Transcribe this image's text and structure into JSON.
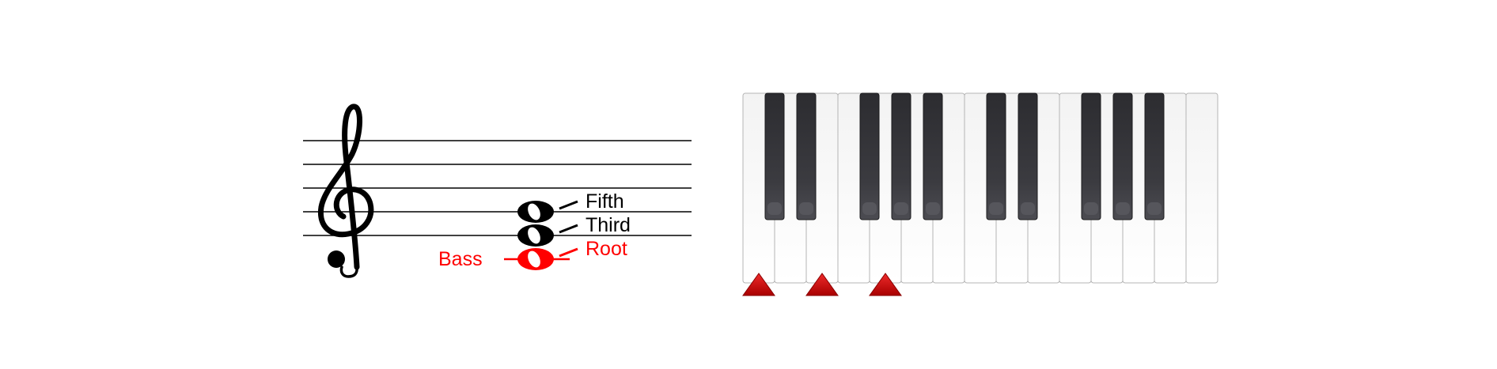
{
  "labels": {
    "bass": "Bass",
    "root": "Root",
    "third": "Third",
    "fifth": "Fifth"
  },
  "colors": {
    "highlight": "#ff0000",
    "marker": "#cc0000",
    "ink": "#000000",
    "black_key": "#3a3a3e",
    "white_key": "#f7f7f7"
  },
  "icons": {
    "clef": "treble-clef-icon",
    "notehead": "whole-note-icon",
    "marker": "triangle-up-icon"
  },
  "staff": {
    "clef": "treble",
    "chord_notes": [
      {
        "role": "root",
        "is_bass": true,
        "highlight": true
      },
      {
        "role": "third",
        "is_bass": false,
        "highlight": false
      },
      {
        "role": "fifth",
        "is_bass": false,
        "highlight": false
      }
    ]
  },
  "keyboard": {
    "white_key_count": 15,
    "black_key_pattern": [
      true,
      true,
      false,
      true,
      true,
      true,
      false,
      true,
      true,
      false,
      true,
      true,
      true,
      false
    ],
    "marked_white_keys": [
      0,
      2,
      4
    ]
  }
}
